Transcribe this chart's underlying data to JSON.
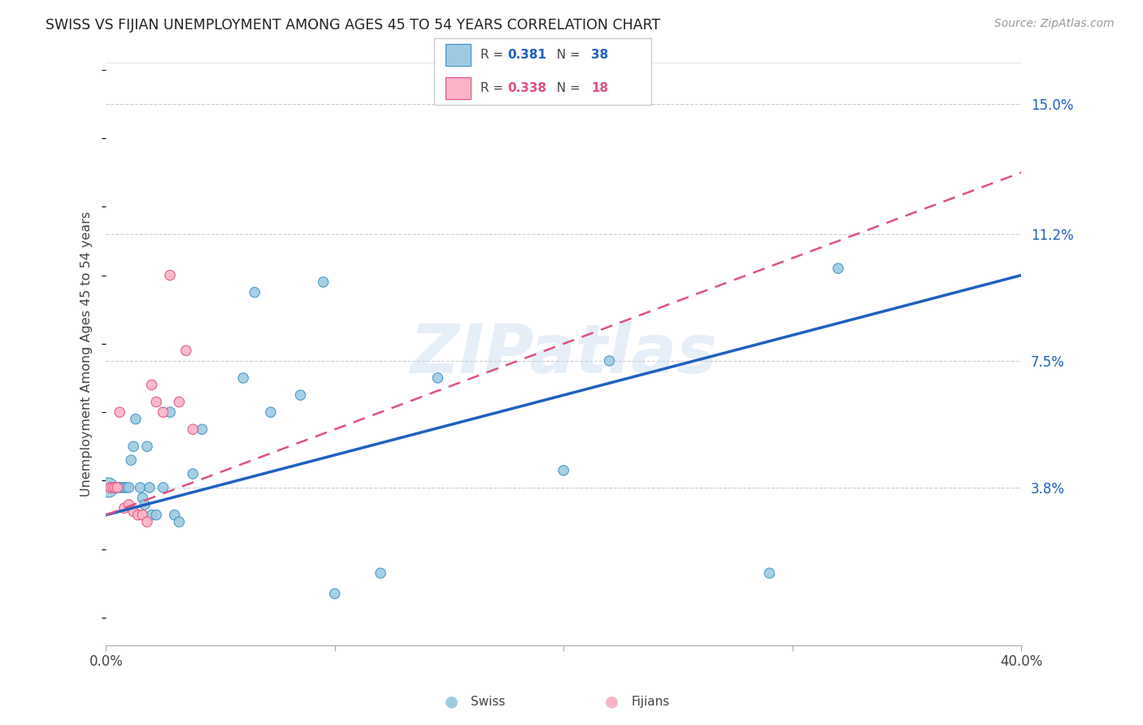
{
  "title": "SWISS VS FIJIAN UNEMPLOYMENT AMONG AGES 45 TO 54 YEARS CORRELATION CHART",
  "source": "Source: ZipAtlas.com",
  "ylabel": "Unemployment Among Ages 45 to 54 years",
  "xlim": [
    0.0,
    0.4
  ],
  "ylim": [
    0.0,
    0.16
  ],
  "xticks": [
    0.0,
    0.1,
    0.2,
    0.3,
    0.4
  ],
  "xticklabels": [
    "0.0%",
    "",
    "",
    "",
    "40.0%"
  ],
  "ytick_right": [
    0.038,
    0.075,
    0.112,
    0.15
  ],
  "ytick_right_labels": [
    "3.8%",
    "7.5%",
    "11.2%",
    "15.0%"
  ],
  "swiss_color": "#9ecae1",
  "swiss_edge_color": "#4292c6",
  "fijian_color": "#fbb4c7",
  "fijian_edge_color": "#e05080",
  "trend_swiss_color": "#2060c0",
  "trend_fijian_color": "#e05080",
  "legend_swiss_R": "0.381",
  "legend_swiss_N": "38",
  "legend_fijian_R": "0.338",
  "legend_fijian_N": "18",
  "swiss_x": [
    0.002,
    0.003,
    0.004,
    0.005,
    0.006,
    0.007,
    0.008,
    0.009,
    0.01,
    0.011,
    0.012,
    0.013,
    0.015,
    0.016,
    0.017,
    0.018,
    0.019,
    0.02,
    0.022,
    0.025,
    0.028,
    0.03,
    0.032,
    0.038,
    0.042,
    0.06,
    0.065,
    0.072,
    0.085,
    0.095,
    0.1,
    0.12,
    0.145,
    0.2,
    0.22,
    0.29,
    0.32,
    0.001
  ],
  "swiss_y": [
    0.038,
    0.038,
    0.038,
    0.038,
    0.038,
    0.038,
    0.038,
    0.038,
    0.038,
    0.046,
    0.05,
    0.058,
    0.038,
    0.035,
    0.033,
    0.05,
    0.038,
    0.03,
    0.03,
    0.038,
    0.06,
    0.03,
    0.028,
    0.042,
    0.055,
    0.07,
    0.095,
    0.06,
    0.065,
    0.098,
    0.007,
    0.013,
    0.07,
    0.043,
    0.075,
    0.013,
    0.102,
    0.038
  ],
  "swiss_sizes": [
    80,
    80,
    80,
    80,
    80,
    80,
    80,
    80,
    80,
    80,
    80,
    80,
    80,
    80,
    80,
    80,
    80,
    80,
    80,
    80,
    80,
    80,
    80,
    80,
    80,
    80,
    80,
    80,
    80,
    80,
    80,
    80,
    80,
    80,
    80,
    80,
    80,
    300
  ],
  "fijian_x": [
    0.002,
    0.003,
    0.004,
    0.005,
    0.006,
    0.008,
    0.01,
    0.012,
    0.014,
    0.016,
    0.018,
    0.02,
    0.022,
    0.025,
    0.028,
    0.032,
    0.035,
    0.038
  ],
  "fijian_y": [
    0.038,
    0.038,
    0.038,
    0.038,
    0.06,
    0.032,
    0.033,
    0.031,
    0.03,
    0.03,
    0.028,
    0.068,
    0.063,
    0.06,
    0.1,
    0.063,
    0.078,
    0.055
  ],
  "fijian_sizes": [
    80,
    80,
    80,
    80,
    80,
    80,
    80,
    80,
    80,
    80,
    80,
    80,
    80,
    80,
    80,
    80,
    80,
    80
  ],
  "trend_swiss_x0": 0.0,
  "trend_swiss_x1": 0.4,
  "trend_swiss_y0": 0.03,
  "trend_swiss_y1": 0.1,
  "trend_fijian_x0": 0.0,
  "trend_fijian_x1": 0.4,
  "trend_fijian_y0": 0.03,
  "trend_fijian_y1": 0.13
}
